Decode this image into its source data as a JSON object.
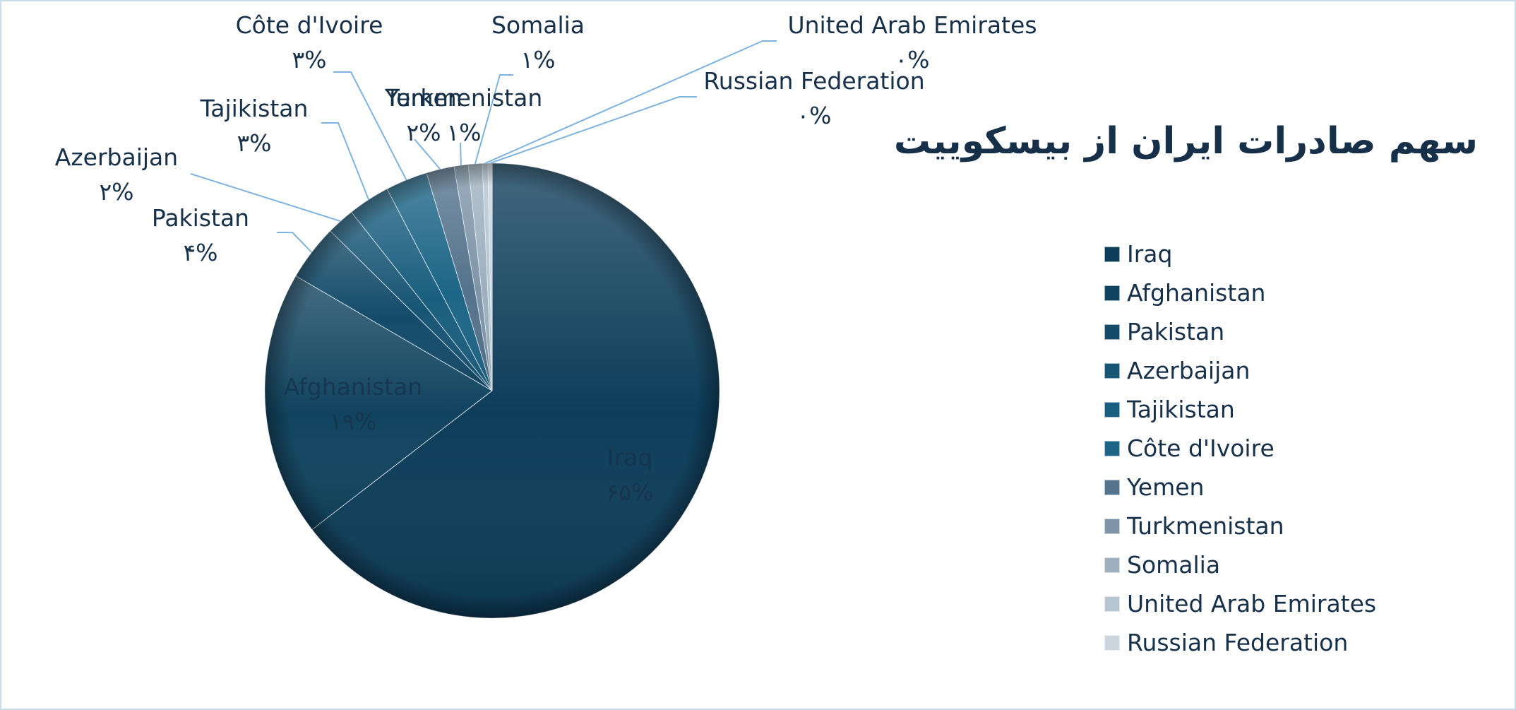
{
  "chart_data": {
    "type": "pie",
    "title": "سهم صادرات ایران از بیسکوییت",
    "legend_position": "right",
    "slices": [
      {
        "label": "Iraq",
        "value": 65,
        "value_label": "۶۵%",
        "color": "#0d3d5a"
      },
      {
        "label": "Afghanistan",
        "value": 19,
        "value_label": "۱۹%",
        "color": "#10435f"
      },
      {
        "label": "Pakistan",
        "value": 4,
        "value_label": "۴%",
        "color": "#134b69"
      },
      {
        "label": "Azerbaijan",
        "value": 2,
        "value_label": "۲%",
        "color": "#175574"
      },
      {
        "label": "Tajikistan",
        "value": 3,
        "value_label": "۳%",
        "color": "#1a5e7f"
      },
      {
        "label": "Côte d'Ivoire",
        "value": 3,
        "value_label": "۳%",
        "color": "#1d6587"
      },
      {
        "label": "Yemen",
        "value": 2,
        "value_label": "۲%",
        "color": "#54738c"
      },
      {
        "label": "Turkmenistan",
        "value": 1,
        "value_label": "۱%",
        "color": "#7f95a8"
      },
      {
        "label": "Somalia",
        "value": 1,
        "value_label": "۱%",
        "color": "#9eb0bf"
      },
      {
        "label": "United Arab Emirates",
        "value": 0.4,
        "value_label": "۰%",
        "color": "#b7c5d1"
      },
      {
        "label": "Russian Federation",
        "value": 0.3,
        "value_label": "۰%",
        "color": "#cbd5de"
      }
    ]
  }
}
